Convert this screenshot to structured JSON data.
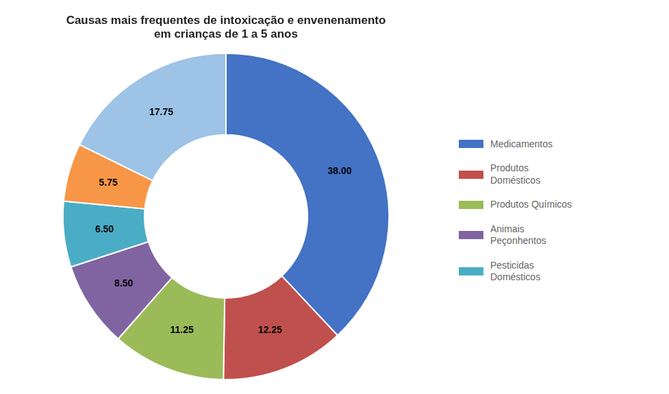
{
  "chart_data": {
    "type": "pie",
    "title": "Causas mais frequentes de intoxicação e envenenamento\nem crianças de 1 a 5 anos",
    "categories": [
      "Medicamentos",
      "Produtos\nDomésticos",
      "Produtos Químicos",
      "Animais\nPeçonhentos",
      "Pesticidas\nDomésticos",
      null,
      null
    ],
    "values": [
      38.0,
      12.25,
      11.25,
      8.5,
      6.5,
      5.75,
      17.75
    ],
    "value_labels": [
      "38.00",
      "12.25",
      "11.25",
      "8.50",
      "6.50",
      "5.75",
      "17.75"
    ],
    "colors": [
      "#4472C4",
      "#C0504D",
      "#9BBB59",
      "#8064A2",
      "#4BACC6",
      "#F79646",
      "#9DC3E6"
    ],
    "data_labels": true,
    "legend": "right"
  }
}
